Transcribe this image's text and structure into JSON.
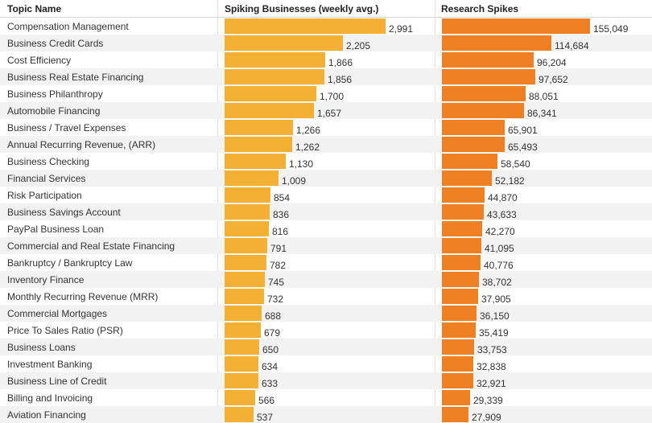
{
  "header": {
    "topic": "Topic Name",
    "spiking": "Spiking Businesses (weekly avg.)",
    "research": "Research Spikes"
  },
  "colors": {
    "spiking_bar": "#f4b034",
    "research_bar": "#ee7f22",
    "stripe": "#f2f2f2"
  },
  "chart_data": {
    "type": "bar",
    "orientation": "horizontal",
    "categories": [
      "Compensation Management",
      "Business Credit Cards",
      "Cost Efficiency",
      "Business Real Estate Financing",
      "Business Philanthropy",
      "Automobile Financing",
      "Business / Travel Expenses",
      "Annual Recurring Revenue, (ARR)",
      "Business Checking",
      "Financial Services",
      "Risk Participation",
      "Business Savings Account",
      "PayPal Business Loan",
      "Commercial and Real Estate Financing",
      "Bankruptcy / Bankruptcy Law",
      "Inventory Finance",
      "Monthly Recurring Revenue (MRR)",
      "Commercial Mortgages",
      "Price To Sales Ratio (PSR)",
      "Business Loans",
      "Investment Banking",
      "Business Line of Credit",
      "Billing and Invoicing",
      "Aviation Financing"
    ],
    "series": [
      {
        "name": "Spiking Businesses (weekly avg.)",
        "values": [
          2991,
          2205,
          1866,
          1856,
          1700,
          1657,
          1266,
          1262,
          1130,
          1009,
          854,
          836,
          816,
          791,
          782,
          745,
          732,
          688,
          679,
          650,
          634,
          633,
          566,
          537
        ],
        "labels": [
          "2,991",
          "2,205",
          "1,866",
          "1,856",
          "1,700",
          "1,657",
          "1,266",
          "1,262",
          "1,130",
          "1,009",
          "854",
          "836",
          "816",
          "791",
          "782",
          "745",
          "732",
          "688",
          "679",
          "650",
          "634",
          "633",
          "566",
          "537"
        ]
      },
      {
        "name": "Research Spikes",
        "values": [
          155049,
          114684,
          96204,
          97652,
          88051,
          86341,
          65901,
          65493,
          58540,
          52182,
          44870,
          43633,
          42270,
          41095,
          40776,
          38702,
          37905,
          36150,
          35419,
          33753,
          32838,
          32921,
          29339,
          27909
        ],
        "labels": [
          "155,049",
          "114,684",
          "96,204",
          "97,652",
          "88,051",
          "86,341",
          "65,901",
          "65,493",
          "58,540",
          "52,182",
          "44,870",
          "43,633",
          "42,270",
          "41,095",
          "40,776",
          "38,702",
          "37,905",
          "36,150",
          "35,419",
          "33,753",
          "32,838",
          "32,921",
          "29,339",
          "27,909"
        ]
      }
    ],
    "title": "",
    "xlabel": "",
    "ylabel": "Topic Name"
  }
}
